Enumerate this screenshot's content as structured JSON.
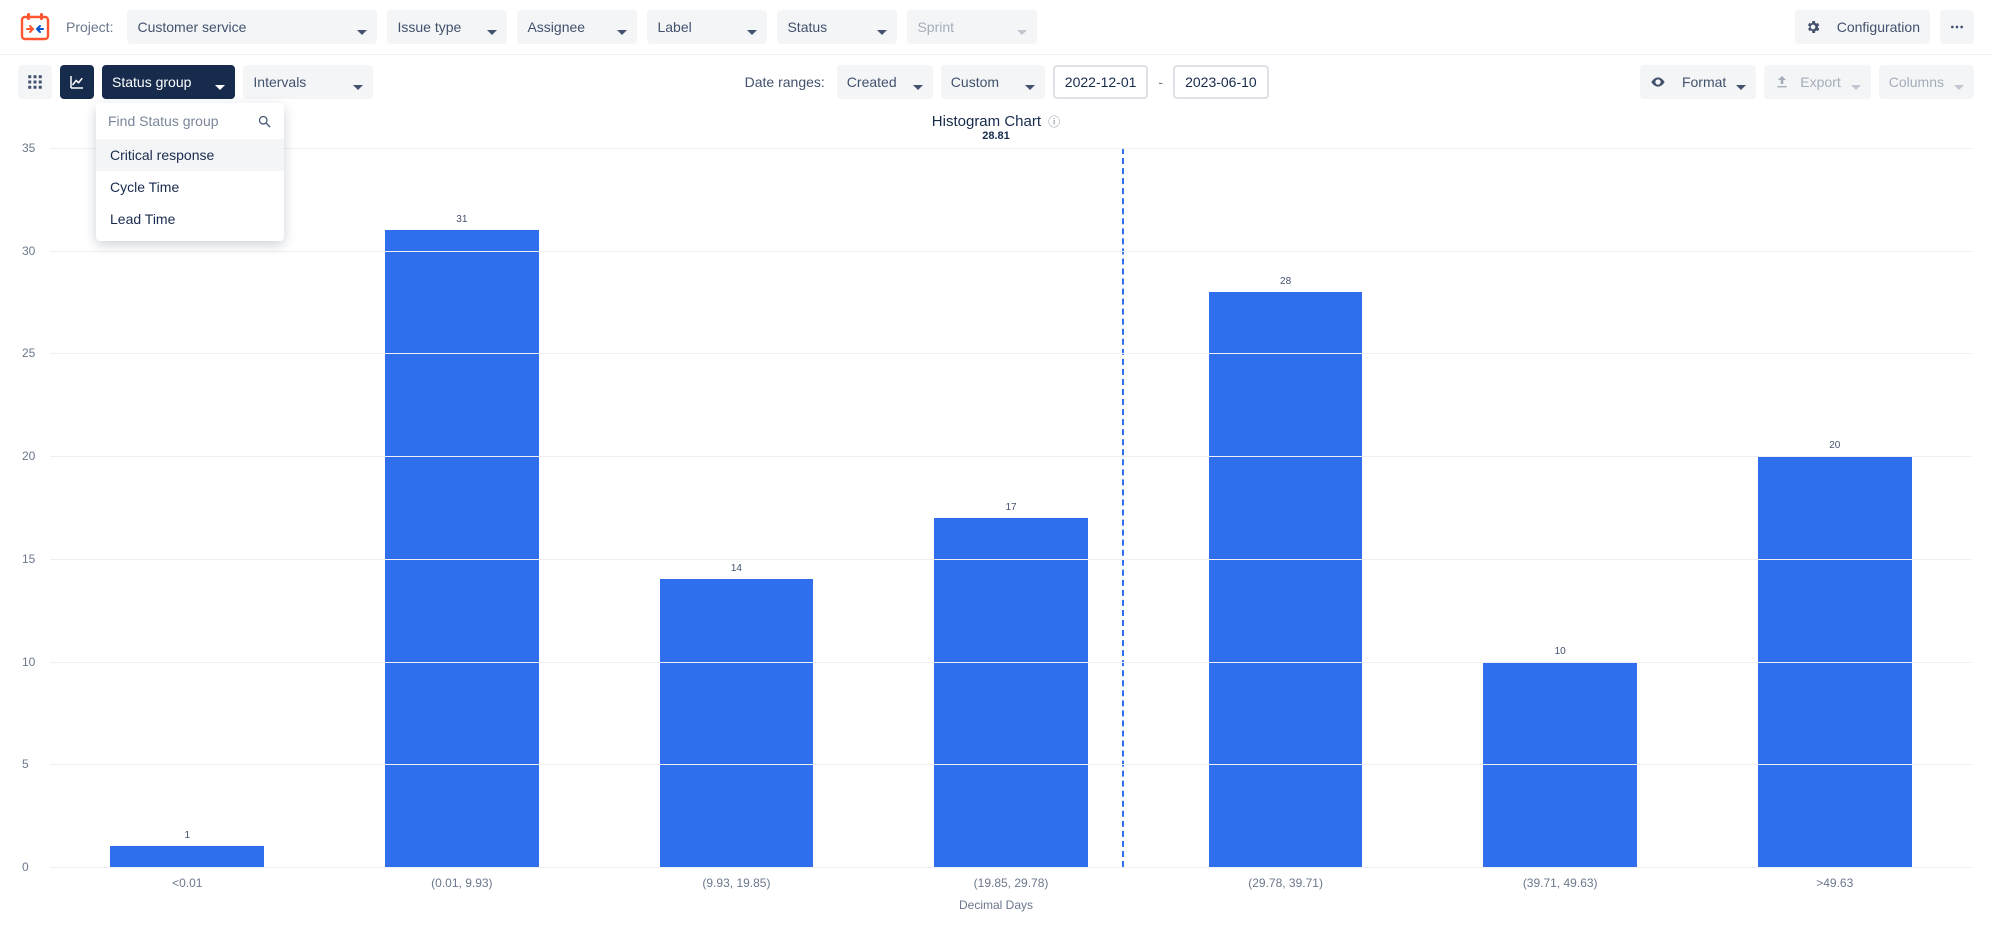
{
  "topbar": {
    "project_label": "Project:",
    "project_value": "Customer service",
    "filters": {
      "issue_type": "Issue type",
      "assignee": "Assignee",
      "label": "Label",
      "status": "Status",
      "sprint": "Sprint"
    },
    "configuration": "Configuration"
  },
  "toolbar2": {
    "status_group": "Status group",
    "intervals": "Intervals",
    "date_ranges_label": "Date ranges:",
    "created": "Created",
    "custom": "Custom",
    "date_from": "2022-12-01",
    "date_to": "2023-06-10",
    "format": "Format",
    "export": "Export",
    "columns": "Columns"
  },
  "dropdown": {
    "placeholder": "Find Status group",
    "items": [
      "Critical response",
      "Cycle Time",
      "Lead Time"
    ],
    "hover_index": 0
  },
  "chart": {
    "type": "bar",
    "title": "Histogram Chart",
    "mean_value": 28.81,
    "mean_label": "28.81",
    "bar_color": "#2f6fed",
    "grid_color": "#eef0f3",
    "axis_text_color": "#6b778c",
    "y": {
      "max": 35,
      "step": 5
    },
    "categories": [
      "<0.01",
      "(0.01, 9.93)",
      "(9.93, 19.85)",
      "(19.85, 29.78)",
      "(29.78, 39.71)",
      "(39.71, 49.63)",
      ">49.63"
    ],
    "numeric_edges": [
      0.01,
      9.93,
      19.85,
      29.78,
      39.71,
      49.63
    ],
    "values": [
      1,
      31,
      14,
      17,
      28,
      10,
      20
    ],
    "xaxis_title": "Decimal Days"
  }
}
